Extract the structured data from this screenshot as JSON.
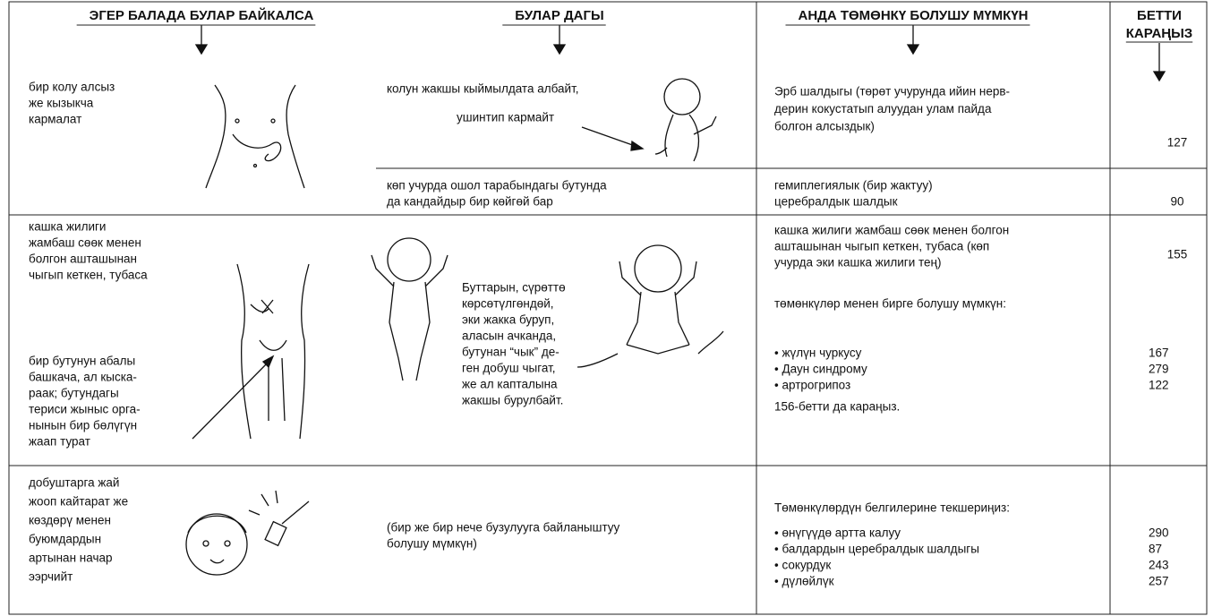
{
  "header": {
    "col1": "ЭГЕР БАЛАДА БУЛАР БАЙКАЛСА",
    "col2": "БУЛАР ДАГЫ",
    "col3": "АНДА ТӨМӨНКҮ БОЛУШУ МҮМКҮН",
    "col4": [
      "БЕТТИ",
      "КАРАҢЫЗ"
    ]
  },
  "rows": [
    {
      "sign": [
        "бир колу алсыз",
        "же кызыкча",
        "кармалат"
      ],
      "findings": [
        {
          "text": [
            "колун жакшы кыймылдата албайт,"
          ],
          "note": "ушинтип кармайт",
          "cause": [
            "Эрб шалдыгы (төрөт учурунда ийин нерв-",
            "дерин кокустатып алуудан улам пайда",
            "болгон алсыздык)"
          ],
          "page": "127"
        },
        {
          "text": [
            "көп учурда ошол тарабындагы бутунда",
            "да кандайдыр бир көйгөй бар"
          ],
          "cause": [
            "гемиплегиялык (бир жактуу)",
            "церебралдык шалдык"
          ],
          "page": "90"
        }
      ]
    },
    {
      "sign": [
        "кашка жилиги",
        "жамбаш сөөк менен",
        "болгон ашташынан",
        "чыгып кеткен, тубаса"
      ],
      "sign_detail": [
        "бир бутунун абалы",
        "башкача, ал кыска-",
        "раак; бутундагы",
        "териси жыныс орга-",
        "нынын бир бөлүгүн",
        "жаап турат"
      ],
      "finding": [
        "Буттарын, сүрөттө",
        "көрсөтүлгөндөй,",
        "эки жакка буруп,",
        "аласын ачканда,",
        "бутунан “чык” де-",
        "ген добуш чыгат,",
        "же ал капталына",
        "жакшы бурулбайт."
      ],
      "cause": [
        "кашка жилиги жамбаш сөөк менен болгон",
        "ашташынан чыгып кеткен, тубаса (көп",
        "учурда эки кашка жилиги тең)"
      ],
      "page": "155",
      "also": "төмөнкүлөр менен бирге болушу мүмкүн:",
      "related": [
        {
          "text": "• жүлүн чуркусу",
          "page": "167"
        },
        {
          "text": "• Даун синдрому",
          "page": "279"
        },
        {
          "text": "• артрогрипоз",
          "page": "122"
        }
      ],
      "see_also": "156-бетти да караңыз."
    },
    {
      "sign": [
        "добуштарга жай",
        "жооп кайтарат же",
        "көздөрү менен",
        "буюмдардын",
        "артынан начар",
        "ээрчийт"
      ],
      "finding": [
        "(бир же бир нече бузулууга байланыштуу",
        "болушу мүмкүн)"
      ],
      "check": "Төмөнкүлөрдүн белгилерине текшериңиз:",
      "related": [
        {
          "text": "• өнүгүүдө артта калуу",
          "page": "290"
        },
        {
          "text": "• балдардын церебралдык шалдыгы",
          "page": "87"
        },
        {
          "text": "• сокурдук",
          "page": "243"
        },
        {
          "text": "• дүлөйлүк",
          "page": "257"
        }
      ]
    }
  ]
}
